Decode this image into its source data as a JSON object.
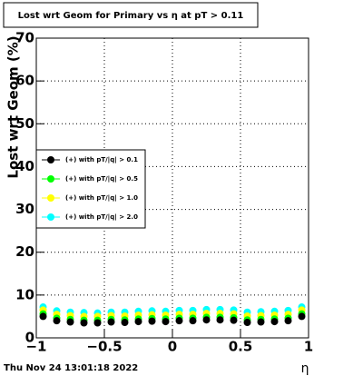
{
  "chart_data": {
    "type": "scatter",
    "title": "Lost wrt Geom for Primary vs   η at pT > 0.11",
    "y_label": "Lost wrt Geom (%)",
    "x_label": "η",
    "timestamp": "Thu Nov 24 13:01:18 2022",
    "x": [
      -0.95,
      -0.85,
      -0.75,
      -0.65,
      -0.55,
      -0.45,
      -0.35,
      -0.25,
      -0.15,
      -0.05,
      0.05,
      0.15,
      0.25,
      0.35,
      0.45,
      0.55,
      0.65,
      0.75,
      0.85,
      0.95
    ],
    "series": [
      {
        "name": "(+) with pT/|q| > 0.1",
        "color": "#000000",
        "values": [
          5.0,
          4.0,
          3.7,
          3.5,
          3.5,
          3.7,
          3.6,
          3.8,
          3.9,
          3.8,
          4.0,
          4.0,
          4.2,
          4.2,
          4.1,
          3.6,
          3.7,
          3.8,
          4.0,
          5.0
        ]
      },
      {
        "name": "(+) with pT/|q| > 0.5",
        "color": "#00ff00",
        "values": [
          5.6,
          4.6,
          4.3,
          4.1,
          4.1,
          4.3,
          4.2,
          4.4,
          4.5,
          4.4,
          4.6,
          4.6,
          4.8,
          4.8,
          4.7,
          4.2,
          4.3,
          4.4,
          4.6,
          5.6
        ]
      },
      {
        "name": "(+) with pT/|q| > 1.0",
        "color": "#ffff00",
        "values": [
          6.5,
          5.5,
          5.2,
          5.0,
          5.0,
          5.2,
          5.1,
          5.3,
          5.4,
          5.3,
          5.5,
          5.5,
          5.7,
          5.7,
          5.6,
          5.1,
          5.2,
          5.3,
          5.5,
          6.5
        ]
      },
      {
        "name": "(+) with pT/|q| > 2.0",
        "color": "#00ffff",
        "values": [
          7.2,
          6.3,
          6.0,
          5.9,
          5.8,
          6.0,
          6.0,
          6.2,
          6.3,
          6.2,
          6.4,
          6.4,
          6.6,
          6.6,
          6.5,
          6.0,
          6.1,
          6.2,
          6.4,
          7.2
        ]
      }
    ],
    "xlim": [
      -1,
      1
    ],
    "ylim": [
      0,
      70
    ],
    "xticks": [
      {
        "value": -1,
        "label": "−1"
      },
      {
        "value": -0.5,
        "label": "−0.5"
      },
      0,
      0.5,
      1
    ],
    "yticks": [
      0,
      10,
      20,
      30,
      40,
      50,
      60,
      70
    ],
    "grid": true,
    "legend": "left"
  }
}
